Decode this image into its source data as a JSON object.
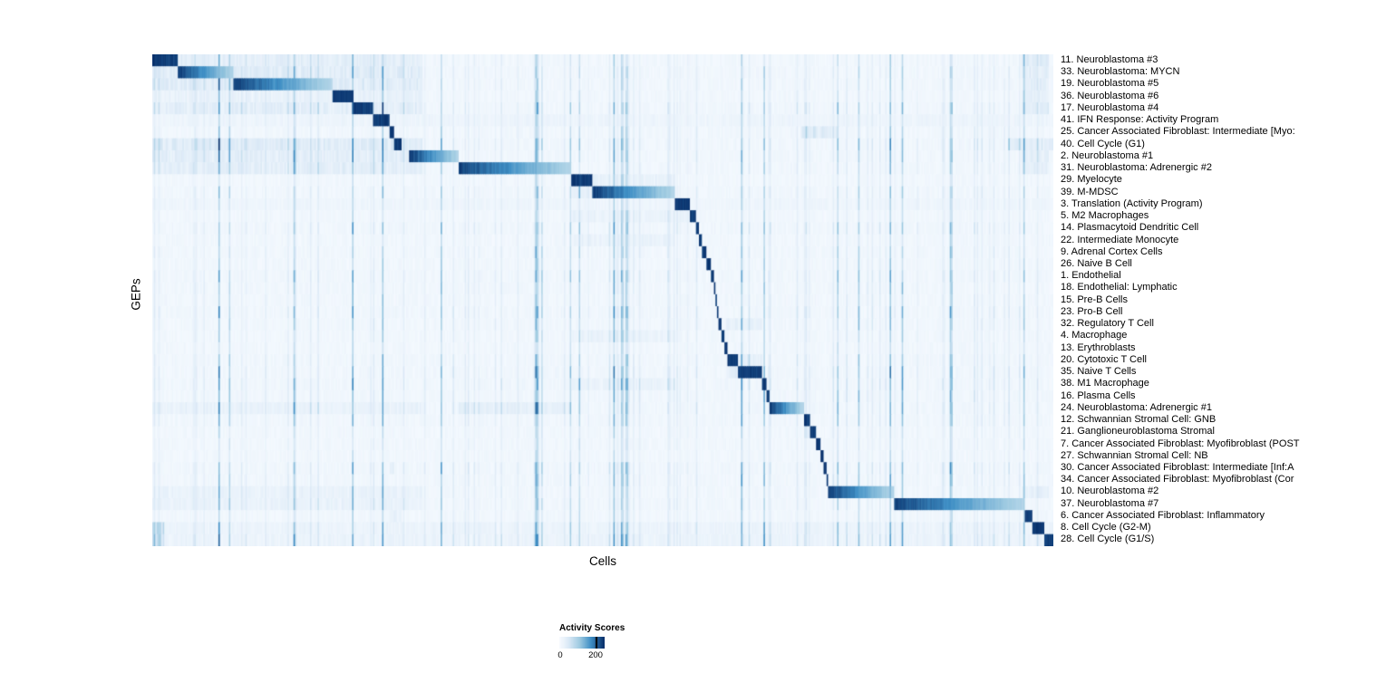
{
  "chart_data": {
    "type": "heatmap",
    "title": "",
    "xlabel": "Cells",
    "ylabel": "GEPs",
    "legend": {
      "title": "Activity Scores",
      "min_label": "0",
      "max_label": "200",
      "tick_fraction": 0.8
    },
    "colormap_stops": [
      [
        0.0,
        "#f7fbff"
      ],
      [
        0.2,
        "#dbe9f6"
      ],
      [
        0.45,
        "#9ecae1"
      ],
      [
        0.7,
        "#3f8fc5"
      ],
      [
        1.0,
        "#08306b"
      ]
    ],
    "n_cells": 600,
    "n_rows": 41,
    "rows": [
      {
        "label": "11. Neuroblastoma #3",
        "block": [
          0.0,
          0.028
        ],
        "extras": [
          [
            0.0,
            0.3,
            0.22
          ],
          [
            0.965,
            0.995,
            0.3
          ]
        ]
      },
      {
        "label": "33. Neuroblastoma: MYCN",
        "block": [
          0.028,
          0.09
        ],
        "extras": [
          [
            0.0,
            0.3,
            0.28
          ],
          [
            0.965,
            0.995,
            0.25
          ]
        ]
      },
      {
        "label": "19. Neuroblastoma #5",
        "block": [
          0.09,
          0.2
        ],
        "extras": [
          [
            0.0,
            0.3,
            0.28
          ],
          [
            0.965,
            0.995,
            0.25
          ]
        ]
      },
      {
        "label": "36. Neuroblastoma #6",
        "block": [
          0.2,
          0.222
        ],
        "extras": [
          [
            0.0,
            0.3,
            0.15
          ],
          [
            0.965,
            0.995,
            0.2
          ]
        ]
      },
      {
        "label": "17. Neuroblastoma #4",
        "block": [
          0.222,
          0.245
        ],
        "extras": [
          [
            0.0,
            0.3,
            0.22
          ],
          [
            0.965,
            0.995,
            0.25
          ]
        ]
      },
      {
        "label": "41. IFN Response: Activity Program",
        "block": [
          0.245,
          0.262
        ],
        "extras": [
          [
            0.0,
            1.0,
            0.07
          ]
        ]
      },
      {
        "label": "25. Cancer Associated Fibroblast: Intermediate [Myo:",
        "block": [
          0.262,
          0.268
        ],
        "extras": [
          [
            0.72,
            0.76,
            0.3
          ]
        ]
      },
      {
        "label": "40. Cell Cycle (G1)",
        "block": [
          0.268,
          0.276
        ],
        "extras": [
          [
            0.0,
            0.3,
            0.28
          ],
          [
            0.95,
            1.0,
            0.25
          ]
        ]
      },
      {
        "label": "2. Neuroblastoma #1",
        "block": [
          0.285,
          0.34
        ],
        "extras": [
          [
            0.0,
            0.3,
            0.22
          ],
          [
            0.965,
            0.995,
            0.2
          ]
        ]
      },
      {
        "label": "31. Neuroblastoma: Adrenergic #2",
        "block": [
          0.34,
          0.465
        ],
        "extras": [
          [
            0.0,
            0.3,
            0.22
          ],
          [
            0.965,
            0.995,
            0.2
          ]
        ]
      },
      {
        "label": "29. Myelocyte",
        "block": [
          0.465,
          0.488
        ],
        "extras": [
          [
            0.488,
            0.58,
            0.15
          ]
        ]
      },
      {
        "label": "39. M-MDSC",
        "block": [
          0.488,
          0.58
        ],
        "extras": [
          [
            0.465,
            0.488,
            0.15
          ]
        ]
      },
      {
        "label": "3. Translation (Activity Program)",
        "block": [
          0.58,
          0.596
        ],
        "extras": [
          [
            0.0,
            1.0,
            0.05
          ]
        ]
      },
      {
        "label": "5. M2 Macrophages",
        "block": [
          0.596,
          0.603
        ],
        "extras": [
          [
            0.465,
            0.596,
            0.12
          ]
        ]
      },
      {
        "label": "14. Plasmacytoid Dendritic Cell",
        "block": [
          0.603,
          0.606
        ],
        "extras": []
      },
      {
        "label": "22. Intermediate Monocyte",
        "block": [
          0.606,
          0.609
        ],
        "extras": [
          [
            0.465,
            0.58,
            0.12
          ]
        ]
      },
      {
        "label": "9. Adrenal Cortex Cells",
        "block": [
          0.609,
          0.615
        ],
        "extras": []
      },
      {
        "label": "26. Naive B Cell",
        "block": [
          0.615,
          0.619
        ],
        "extras": []
      },
      {
        "label": "1. Endothelial",
        "block": [
          0.619,
          0.622
        ],
        "extras": []
      },
      {
        "label": "18. Endothelial: Lymphatic",
        "block": [
          0.622,
          0.624
        ],
        "extras": []
      },
      {
        "label": "15. Pre-B Cells",
        "block": [
          0.624,
          0.626
        ],
        "extras": []
      },
      {
        "label": "23. Pro-B Cell",
        "block": [
          0.626,
          0.628
        ],
        "extras": []
      },
      {
        "label": "32. Regulatory T Cell",
        "block": [
          0.628,
          0.631
        ],
        "extras": [
          [
            0.636,
            0.676,
            0.15
          ]
        ]
      },
      {
        "label": "4. Macrophage",
        "block": [
          0.631,
          0.634
        ],
        "extras": [
          [
            0.465,
            0.58,
            0.12
          ]
        ]
      },
      {
        "label": "13. Erythroblasts",
        "block": [
          0.634,
          0.637
        ],
        "extras": []
      },
      {
        "label": "20. Cytotoxic T Cell",
        "block": [
          0.637,
          0.649
        ],
        "extras": [
          [
            0.649,
            0.676,
            0.2
          ]
        ]
      },
      {
        "label": "35. Naive T Cells",
        "block": [
          0.649,
          0.676
        ],
        "extras": [
          [
            0.637,
            0.649,
            0.2
          ]
        ]
      },
      {
        "label": "38. M1 Macrophage",
        "block": [
          0.676,
          0.681
        ],
        "extras": [
          [
            0.465,
            0.58,
            0.1
          ]
        ]
      },
      {
        "label": "16. Plasma Cells",
        "block": [
          0.681,
          0.685
        ],
        "extras": []
      },
      {
        "label": "24. Neuroblastoma: Adrenergic #1",
        "block": [
          0.685,
          0.722
        ],
        "extras": [
          [
            0.0,
            0.3,
            0.12
          ],
          [
            0.34,
            0.465,
            0.18
          ]
        ]
      },
      {
        "label": "12. Schwannian Stromal Cell: GNB",
        "block": [
          0.722,
          0.73
        ],
        "extras": []
      },
      {
        "label": "21. Ganglioneuroblastoma Stromal",
        "block": [
          0.73,
          0.736
        ],
        "extras": [
          [
            0.722,
            0.73,
            0.2
          ]
        ]
      },
      {
        "label": "7. Cancer Associated Fibroblast: Myofibroblast (POST",
        "block": [
          0.736,
          0.741
        ],
        "extras": []
      },
      {
        "label": "27. Schwannian Stromal Cell: NB",
        "block": [
          0.741,
          0.744
        ],
        "extras": []
      },
      {
        "label": "30. Cancer Associated Fibroblast: Intermediate [Inf:A",
        "block": [
          0.744,
          0.747
        ],
        "extras": [
          [
            0.262,
            0.268,
            0.2
          ]
        ]
      },
      {
        "label": "34. Cancer Associated Fibroblast: Myofibroblast (Cor",
        "block": [
          0.747,
          0.75
        ],
        "extras": []
      },
      {
        "label": "10. Neuroblastoma #2",
        "block": [
          0.75,
          0.822
        ],
        "extras": [
          [
            0.0,
            0.3,
            0.12
          ],
          [
            0.965,
            0.995,
            0.2
          ]
        ]
      },
      {
        "label": "37. Neuroblastoma #7",
        "block": [
          0.822,
          0.968
        ],
        "extras": [
          [
            0.0,
            0.3,
            0.12
          ]
        ]
      },
      {
        "label": "6. Cancer Associated Fibroblast: Inflammatory",
        "block": [
          0.968,
          0.976
        ],
        "extras": [
          [
            0.262,
            0.276,
            0.15
          ]
        ]
      },
      {
        "label": "8. Cell Cycle (G2-M)",
        "block": [
          0.976,
          0.989
        ],
        "extras": [
          [
            0.0,
            1.0,
            0.08
          ],
          [
            0.0,
            0.012,
            0.5
          ]
        ]
      },
      {
        "label": "28. Cell Cycle (G1/S)",
        "block": [
          0.989,
          1.0
        ],
        "extras": [
          [
            0.0,
            1.0,
            0.08
          ],
          [
            0.0,
            0.012,
            0.5
          ]
        ]
      }
    ]
  }
}
